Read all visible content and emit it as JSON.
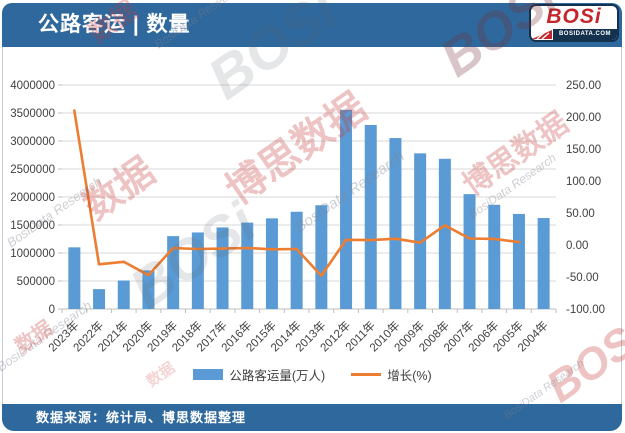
{
  "header": {
    "title": "公路客运 | 数量",
    "logo": {
      "brand": "BOSi",
      "domain": "BOSIDATA.COM"
    }
  },
  "footer": {
    "source": "数据来源：统计局、博思数据整理"
  },
  "watermark": {
    "brand": "BOSi",
    "cn": "博思数据",
    "cn_short": "数据",
    "en": "BosiData Research"
  },
  "chart_data": {
    "type": "bar",
    "title": "公路客运 | 数量",
    "categories": [
      "2023年",
      "2022年",
      "2021年",
      "2020年",
      "2019年",
      "2018年",
      "2017年",
      "2016年",
      "2015年",
      "2014年",
      "2013年",
      "2012年",
      "2011年",
      "2010年",
      "2009年",
      "2008年",
      "2007年",
      "2006年",
      "2005年",
      "2004年"
    ],
    "series": [
      {
        "name": "公路客运量(万人)",
        "type": "bar",
        "axis": "left",
        "color": "#5B9BD5",
        "values": [
          1101156,
          355019,
          508693,
          689425,
          1301173,
          1367170,
          1456784,
          1542759,
          1619097,
          1736270,
          1853463,
          3557010,
          3286220,
          3052738,
          2779081,
          2682114,
          2050680,
          1860487,
          1697381,
          1624526
        ]
      },
      {
        "name": "增长(%)",
        "type": "line",
        "axis": "right",
        "color": "#ED7D31",
        "values": [
          210.2,
          -30.2,
          -26.2,
          -47.0,
          -4.8,
          -6.2,
          -5.6,
          -4.7,
          -6.7,
          -6.3,
          -47.9,
          8.2,
          7.6,
          9.8,
          3.6,
          30.8,
          10.2,
          9.6,
          4.5,
          null
        ]
      }
    ],
    "left_axis": {
      "min": 0,
      "max": 4000000,
      "step": 500000
    },
    "right_axis": {
      "min": -100,
      "max": 250,
      "step": 50,
      "decimals": 2
    },
    "grid": true,
    "legend_position": "bottom",
    "xlabel": "",
    "ylabel_left": "公路客运量(万人)",
    "ylabel_right": "增长(%)"
  }
}
